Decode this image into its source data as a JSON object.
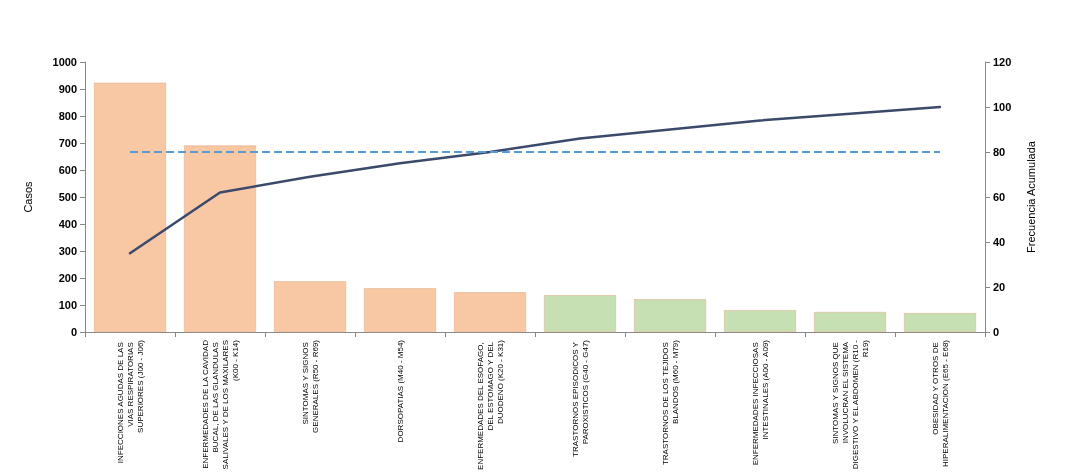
{
  "chart_data": {
    "type": "bar",
    "ylabel": "Casos",
    "y2label": "Frecuencia Acumulada",
    "categories": [
      "INFECCIONES AGUDAS DE LAS VIAS RESPIRATORIAS SUPERIORES (J00 - J06)",
      "ENFERMEDADES DE LA CAVIDAD BUCAL, DE LAS GLANDULAS SALIVALES Y DE LOS MAXILARES (K00 - K14)",
      "SINTOMAS Y SIGNOS GENERALES (R50 - R69)",
      "DORSOPATIAS (M40 - M54)",
      "ENFERMEDADES DEL ESOFAGO, DEL ESTOMAGO Y DEL DUODENO (K20 - K31)",
      "TRASTORNOS EPISODICOS Y PAROXISTICOS (G40 - G47)",
      "TRASTORNOS DE LOS TEJIDOS BLANDOS (M60 - M79)",
      "ENFERMEDADES INFECCIOSAS INTESTINALES (A00 - A09)",
      "SINTOMAS Y SIGNOS QUE INVOLUCRAN EL SISTEMA DIGESTIVO Y EL ABDOMEN (R10 - R19)",
      "OBESIDAD Y OTROS DE HIPERALIMENTACION (E65 - E68)"
    ],
    "series": [
      {
        "values": [
          923,
          691,
          188,
          162,
          147,
          136,
          121,
          81,
          74,
          70
        ],
        "colors": [
          "#f8c7a4",
          "#f8c7a4",
          "#f8c7a4",
          "#f8c7a4",
          "#f8c7a4",
          "#c6e0b4",
          "#c6e0b4",
          "#c6e0b4",
          "#c6e0b4",
          "#c6e0b4"
        ]
      },
      {
        "type": "line",
        "axis": "y2",
        "color": "#3b4a6b",
        "values": [
          35,
          62,
          69,
          75,
          80,
          86,
          90,
          94,
          97,
          100
        ]
      }
    ],
    "ylim": [
      0,
      1000
    ],
    "yticks": [
      0,
      100,
      200,
      300,
      400,
      500,
      600,
      700,
      800,
      900,
      1000
    ],
    "y2lim": [
      0,
      120
    ],
    "y2ticks": [
      0,
      20,
      40,
      60,
      80,
      100,
      120
    ],
    "ref_lines": [
      {
        "axis": "y2",
        "value": 80,
        "color": "#5b9bd5",
        "line_style": "dashed"
      }
    ],
    "grid": false,
    "marker": "none"
  }
}
